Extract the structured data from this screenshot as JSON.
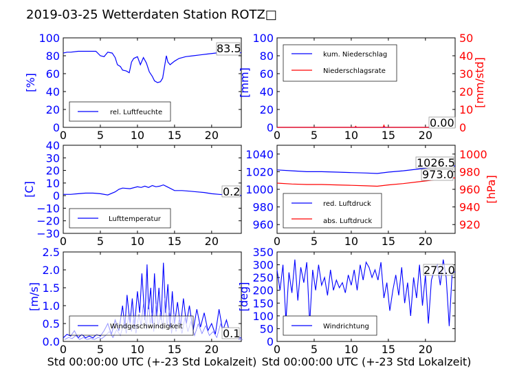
{
  "title": "2019-03-25 Wetterdaten Station ROTZ□",
  "xlabel": "Std 00:00:00 UTC (+-23 Std Lokalzeit)",
  "colors": {
    "blue": "#0000ff",
    "red": "#ff0000",
    "light_blue": "#7777ff"
  },
  "chart_data": [
    {
      "type": "line",
      "id": "humidity",
      "xlim": [
        0,
        24
      ],
      "ylim": [
        0,
        100
      ],
      "xticks": [
        "0",
        "5",
        "10",
        "15",
        "20"
      ],
      "yticks": [
        "0",
        "20",
        "40",
        "60",
        "80",
        "100"
      ],
      "ylabel": "[%]",
      "legend_placement": "lower-left",
      "annotation": "83.5",
      "series": [
        {
          "name": "rel. Luftfeuchte",
          "color": "#0000ff",
          "x": [
            0,
            0.5,
            1,
            2,
            3,
            3.8,
            4.4,
            5,
            5.5,
            6,
            6.6,
            7,
            7.3,
            7.7,
            8,
            8.5,
            8.9,
            9.2,
            9.5,
            10,
            10.4,
            10.8,
            11.2,
            11.6,
            12,
            12.3,
            12.7,
            13.1,
            13.4,
            13.7,
            13.9,
            14.1,
            14.4,
            15,
            15.6,
            16.5,
            17.5,
            18.5,
            19.5,
            20.5,
            21.5,
            22.5,
            23.2,
            24
          ],
          "y": [
            83,
            84,
            84,
            85,
            85,
            85,
            85,
            80,
            79,
            84,
            83,
            78,
            70,
            68,
            64,
            63,
            61,
            73,
            77,
            79,
            70,
            78,
            72,
            62,
            57,
            52,
            50,
            51,
            55,
            70,
            80,
            73,
            70,
            74,
            77,
            79,
            80,
            81,
            82,
            83,
            84,
            84,
            83,
            83.5
          ]
        }
      ]
    },
    {
      "type": "line",
      "id": "precipitation",
      "xlim": [
        0,
        24
      ],
      "ylim": [
        0,
        100
      ],
      "y2lim": [
        0,
        50
      ],
      "xticks": [
        "0",
        "5",
        "10",
        "15",
        "20"
      ],
      "yticks": [
        "0",
        "20",
        "40",
        "60",
        "80",
        "100"
      ],
      "y2ticks": [
        "0",
        "10",
        "20",
        "30",
        "40",
        "50"
      ],
      "ylabel": "[mm]",
      "y2label": "[mm/std]",
      "legend_placement": "upper-left",
      "annotation": "0.00",
      "series": [
        {
          "name": "kum. Niederschlag",
          "color": "#0000ff",
          "axis": "left",
          "x": [
            0,
            24
          ],
          "y": [
            0,
            0
          ]
        },
        {
          "name": "Niederschlagsrate",
          "color": "#ff0000",
          "axis": "right",
          "x": [
            0,
            10.5,
            10.6,
            10.7,
            14.3,
            14.4,
            14.5,
            14.6,
            24
          ],
          "y": [
            0,
            0,
            0.6,
            0,
            0,
            1.2,
            0.2,
            0,
            0
          ]
        }
      ]
    },
    {
      "type": "line",
      "id": "temperature",
      "xlim": [
        0,
        24
      ],
      "ylim": [
        -30,
        40
      ],
      "xticks": [
        "0",
        "5",
        "10",
        "15",
        "20"
      ],
      "yticks": [
        "−30",
        "−20",
        "−10",
        "0",
        "10",
        "20",
        "30",
        "40"
      ],
      "ylabel": "[C]",
      "legend_placement": "lower-left",
      "annotation": "0.2",
      "series": [
        {
          "name": "Lufttemperatur",
          "color": "#0000ff",
          "x": [
            0,
            1,
            2,
            3,
            4,
            5,
            6,
            7,
            7.5,
            8,
            9,
            10,
            10.5,
            11,
            11.5,
            12,
            12.5,
            13,
            13.5,
            14,
            15,
            16,
            17,
            18,
            19,
            20,
            21,
            22,
            23,
            24
          ],
          "y": [
            1,
            1,
            1.5,
            2,
            2,
            1.5,
            0.5,
            3,
            5,
            6,
            5.5,
            7,
            6.5,
            7.5,
            6.5,
            8,
            7,
            7.5,
            8.5,
            7,
            4,
            4,
            3.5,
            3,
            2.5,
            1.5,
            1,
            0.5,
            0.3,
            0.2
          ]
        }
      ]
    },
    {
      "type": "line",
      "id": "pressure",
      "xlim": [
        0,
        24
      ],
      "ylim": [
        950,
        1050
      ],
      "y2lim": [
        910,
        1010
      ],
      "xticks": [
        "0",
        "5",
        "10",
        "15",
        "20"
      ],
      "yticks": [
        "960",
        "980",
        "1000",
        "1020",
        "1040"
      ],
      "y2ticks": [
        "920",
        "940",
        "960",
        "980",
        "1000"
      ],
      "ylabel": "",
      "y2label": "[hPa]",
      "legend_placement": "lower-left",
      "annotations": [
        "1026.5",
        "973.0"
      ],
      "series": [
        {
          "name": "red. Luftdruck",
          "color": "#0000ff",
          "axis": "left",
          "x": [
            0,
            2,
            4,
            6,
            8,
            10,
            12,
            13.5,
            15,
            17,
            19,
            21,
            22.5,
            24
          ],
          "y": [
            1022,
            1021,
            1020,
            1020,
            1019.5,
            1019,
            1018.5,
            1018,
            1019.5,
            1021,
            1023,
            1025,
            1026,
            1026.5
          ]
        },
        {
          "name": "abs. Luftdruck",
          "color": "#ff0000",
          "axis": "right",
          "x": [
            0,
            2,
            4,
            6,
            8,
            10,
            12,
            13.5,
            15,
            17,
            19,
            21,
            22.5,
            24
          ],
          "y": [
            967,
            966,
            965.5,
            965.5,
            965,
            964.5,
            964,
            963.5,
            965,
            966.5,
            968.5,
            970.5,
            972,
            973
          ]
        }
      ]
    },
    {
      "type": "line",
      "id": "windspeed",
      "xlim": [
        0,
        24
      ],
      "ylim": [
        0,
        2.5
      ],
      "xticks": [
        "0",
        "5",
        "10",
        "15",
        "20"
      ],
      "yticks": [
        "0.0",
        "0.5",
        "1.0",
        "1.5",
        "2.0",
        "2.5"
      ],
      "ylabel": "[m/s]",
      "legend_placement": "lower-left",
      "annotation": "0.1",
      "series": [
        {
          "name": "Windgeschwindigkeit",
          "color": "#0000ff",
          "x": [
            0,
            0.5,
            1,
            1.5,
            2,
            2.5,
            3,
            3.5,
            4,
            4.5,
            5,
            5.5,
            6,
            6.5,
            7,
            7.5,
            8,
            8.3,
            8.6,
            9,
            9.3,
            9.6,
            10,
            10.3,
            10.6,
            11,
            11.3,
            11.5,
            11.8,
            12,
            12.3,
            12.6,
            12.9,
            13.2,
            13.5,
            13.8,
            14.1,
            14.4,
            14.7,
            15,
            15.4,
            15.8,
            16.2,
            16.6,
            17,
            17.5,
            18,
            18.5,
            19,
            19.5,
            20,
            20.5,
            21,
            21.5,
            22,
            22.5,
            23,
            23.5,
            24
          ],
          "y": [
            0.1,
            0.2,
            0.15,
            0.3,
            0.1,
            0.2,
            0.1,
            0.15,
            0.1,
            0.2,
            0.15,
            0.3,
            0.5,
            0.2,
            0.6,
            0.3,
            1.0,
            0.4,
            1.3,
            0.5,
            1.2,
            0.4,
            1.4,
            0.8,
            1.9,
            0.6,
            2.15,
            0.9,
            1.5,
            0.5,
            1.9,
            0.7,
            1.5,
            0.6,
            2.2,
            0.8,
            1.6,
            0.4,
            1.4,
            0.5,
            1.1,
            0.4,
            1.2,
            0.5,
            1.0,
            0.3,
            0.9,
            0.4,
            0.8,
            0.3,
            0.5,
            0.2,
            0.9,
            0.3,
            0.6,
            0.2,
            0.3,
            0.1,
            0.1
          ]
        }
      ]
    },
    {
      "type": "line",
      "id": "winddir",
      "xlim": [
        0,
        24
      ],
      "ylim": [
        0,
        350
      ],
      "xticks": [
        "0",
        "5",
        "10",
        "15",
        "20"
      ],
      "yticks": [
        "0",
        "50",
        "100",
        "150",
        "200",
        "250",
        "300",
        "350"
      ],
      "ylabel": "[deg]",
      "legend_placement": "lower-left",
      "annotation": "272.0",
      "series": [
        {
          "name": "Windrichtung",
          "color": "#0000ff",
          "x": [
            0,
            0.4,
            0.8,
            1.2,
            1.6,
            2,
            2.4,
            2.8,
            3.2,
            3.6,
            4,
            4.4,
            4.8,
            5.2,
            5.6,
            6,
            6.4,
            6.8,
            7.2,
            7.6,
            8,
            8.4,
            8.8,
            9.2,
            9.6,
            10,
            10.4,
            10.8,
            11.2,
            11.6,
            12,
            12.4,
            12.8,
            13.2,
            13.6,
            14,
            14.4,
            14.8,
            15.2,
            15.6,
            16,
            16.4,
            16.8,
            17.2,
            17.6,
            18,
            18.4,
            18.8,
            19.2,
            19.6,
            20,
            20.4,
            20.8,
            21.2,
            21.6,
            22,
            22.4,
            22.8,
            23.2,
            23.6,
            24
          ],
          "y": [
            280,
            200,
            300,
            80,
            270,
            190,
            320,
            160,
            290,
            230,
            310,
            70,
            280,
            200,
            300,
            220,
            250,
            180,
            280,
            200,
            240,
            210,
            230,
            190,
            260,
            220,
            280,
            200,
            300,
            240,
            310,
            290,
            250,
            280,
            240,
            310,
            170,
            230,
            120,
            200,
            260,
            180,
            290,
            150,
            230,
            100,
            250,
            170,
            300,
            140,
            260,
            70,
            240,
            280,
            300,
            220,
            320,
            250,
            60,
            270,
            272
          ]
        }
      ]
    }
  ]
}
